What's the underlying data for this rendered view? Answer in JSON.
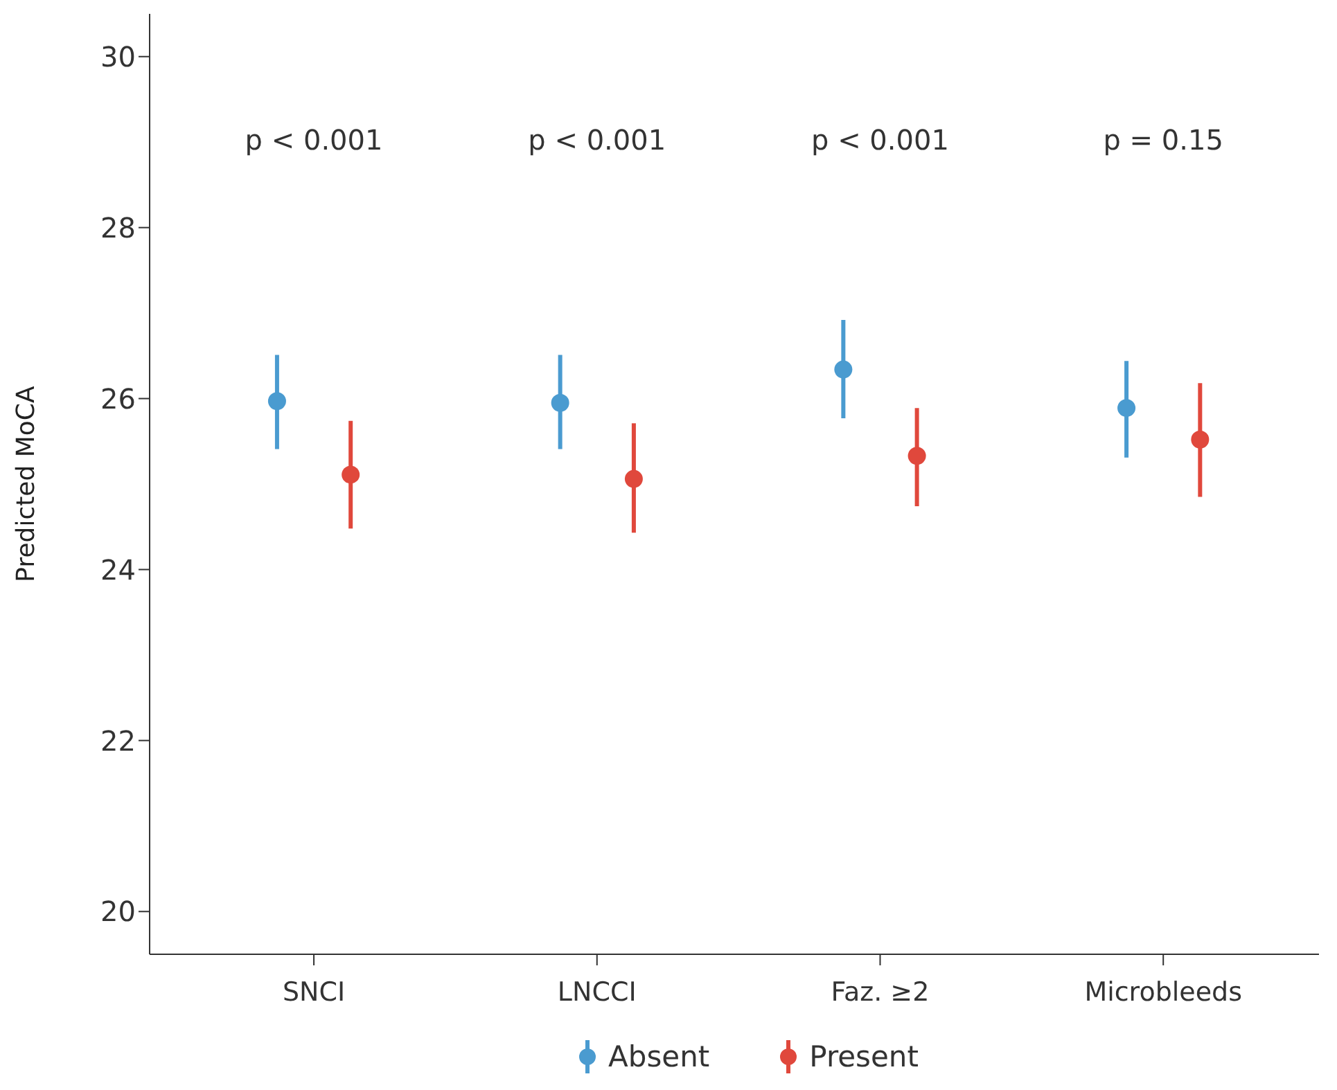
{
  "chart_data": {
    "type": "scatter",
    "ylabel": "Predicted MoCA",
    "categories": [
      "SNCI",
      "LNCCI",
      "Faz. ≥2",
      "Microbleeds"
    ],
    "series": [
      {
        "name": "Absent",
        "color": "#4a9bd0",
        "values": [
          25.97,
          25.95,
          26.34,
          25.89
        ],
        "errors": [
          [
            25.41,
            26.51
          ],
          [
            25.41,
            26.51
          ],
          [
            25.77,
            26.92
          ],
          [
            25.31,
            26.44
          ]
        ]
      },
      {
        "name": "Present",
        "color": "#e0483c",
        "values": [
          25.11,
          25.06,
          25.33,
          25.52
        ],
        "errors": [
          [
            24.48,
            25.74
          ],
          [
            24.43,
            25.71
          ],
          [
            24.74,
            25.89
          ],
          [
            24.85,
            26.18
          ]
        ]
      }
    ],
    "ylim": [
      19.5,
      30.5
    ],
    "yticks": [
      20,
      22,
      24,
      26,
      28,
      30
    ],
    "grid": false,
    "legend": "bottom",
    "marker": "circle",
    "annotations": [
      "p < 0.001",
      "p < 0.001",
      "p < 0.001",
      "p = 0.15"
    ]
  }
}
